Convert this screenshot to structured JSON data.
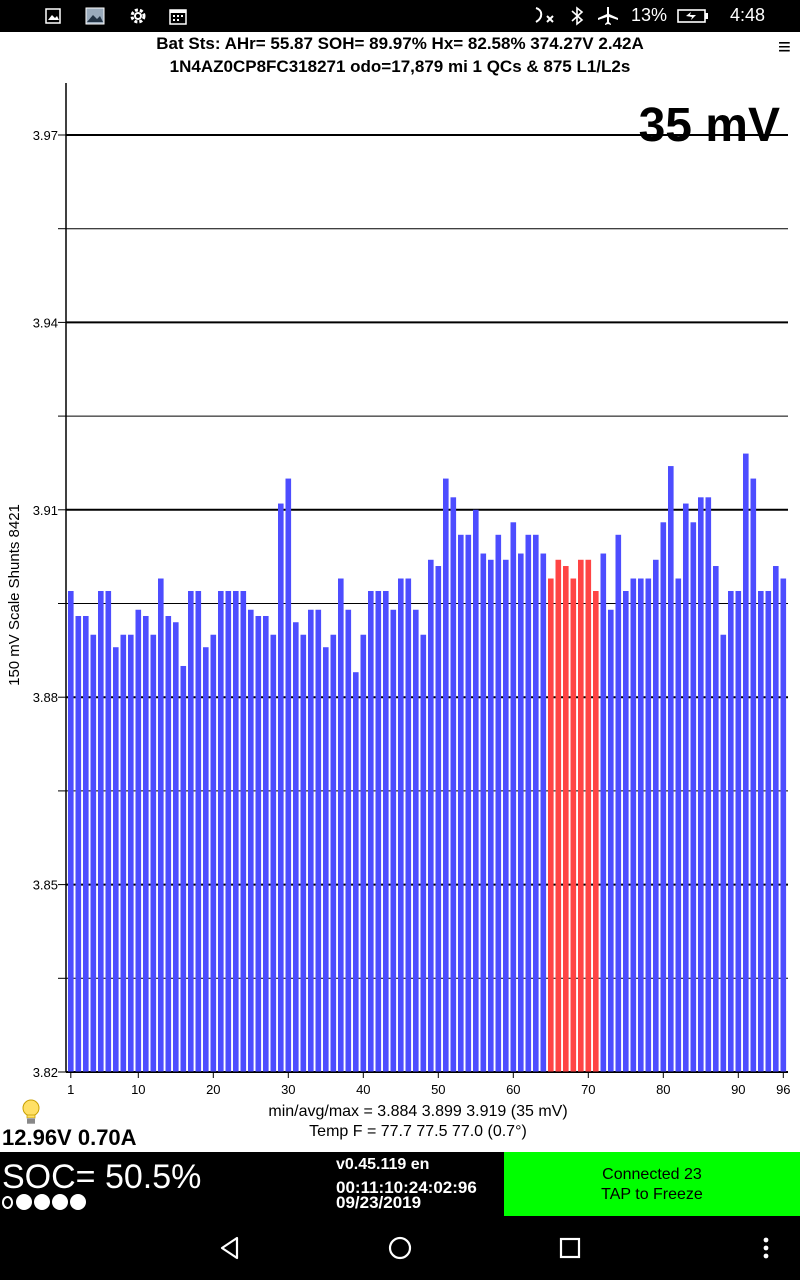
{
  "status_bar": {
    "battery_percent": "13%",
    "time": "4:48",
    "icons": [
      "image-icon",
      "photo-icon",
      "gear-icon",
      "calendar-icon",
      "missed-call-icon",
      "bluetooth-icon",
      "airplane-mode-icon",
      "battery-charging-icon"
    ]
  },
  "header": {
    "line1": "Bat Sts:  AHr= 55.87  SOH= 89.97%   Hx= 82.58%   374.27V 2.42A",
    "line2": "1N4AZ0CP8FC318271 odo=17,879 mi  1 QCs & 875 L1/L2s",
    "menu_label": "≡"
  },
  "chart_data": {
    "type": "bar",
    "title": "35 mV",
    "ylabel_1": "150 mV Scale",
    "ylabel_2": "Shunts 8421",
    "ylim": [
      3.82,
      3.97
    ],
    "yticks": [
      3.82,
      3.85,
      3.88,
      3.91,
      3.94,
      3.97
    ],
    "ytick_labels": [
      "3.82",
      "3.85",
      "3.88",
      "3.91",
      "3.94",
      "3.97"
    ],
    "xticks": [
      1,
      10,
      20,
      30,
      40,
      50,
      60,
      70,
      80,
      90,
      96
    ],
    "xtick_labels": [
      "1",
      "10",
      "20",
      "30",
      "40",
      "50",
      "60",
      "70",
      "80",
      "90",
      "96"
    ],
    "grid": "horizontal",
    "colors": {
      "normal": "#4d4dff",
      "shunted": "#ff4444"
    },
    "shunted_cells": [
      65,
      66,
      67,
      68,
      69,
      70,
      71
    ],
    "values": [
      3.897,
      3.893,
      3.893,
      3.89,
      3.897,
      3.897,
      3.888,
      3.89,
      3.89,
      3.894,
      3.893,
      3.89,
      3.899,
      3.893,
      3.892,
      3.885,
      3.897,
      3.897,
      3.888,
      3.89,
      3.897,
      3.897,
      3.897,
      3.897,
      3.894,
      3.893,
      3.893,
      3.89,
      3.911,
      3.915,
      3.892,
      3.89,
      3.894,
      3.894,
      3.888,
      3.89,
      3.899,
      3.894,
      3.884,
      3.89,
      3.897,
      3.897,
      3.897,
      3.894,
      3.899,
      3.899,
      3.894,
      3.89,
      3.902,
      3.901,
      3.915,
      3.912,
      3.906,
      3.906,
      3.91,
      3.903,
      3.902,
      3.906,
      3.902,
      3.908,
      3.903,
      3.906,
      3.906,
      3.903,
      3.899,
      3.902,
      3.901,
      3.899,
      3.902,
      3.902,
      3.897,
      3.903,
      3.894,
      3.906,
      3.897,
      3.899,
      3.899,
      3.899,
      3.902,
      3.908,
      3.917,
      3.899,
      3.911,
      3.908,
      3.912,
      3.912,
      3.901,
      3.89,
      3.897,
      3.897,
      3.919,
      3.915,
      3.897,
      3.897,
      3.901,
      3.899
    ]
  },
  "stats": {
    "line1": "min/avg/max = 3.884 3.899 3.919  (35 mV)",
    "line2": "Temp F = 77.7  77.5  77.0  (0.7°)"
  },
  "aux_battery": "12.96V 0.70A",
  "soc": {
    "label": "SOC= 50.5%",
    "dots_filled": 4
  },
  "app_info": {
    "version": "v0.45.119 en",
    "timer": "00:11:10:24:02:96",
    "date": "09/23/2019"
  },
  "connection": {
    "line1": "Connected 23",
    "line2": "TAP to Freeze",
    "color": "#00ff00"
  },
  "nav": [
    "back-icon",
    "home-icon",
    "recents-icon",
    "overflow-menu-icon"
  ]
}
